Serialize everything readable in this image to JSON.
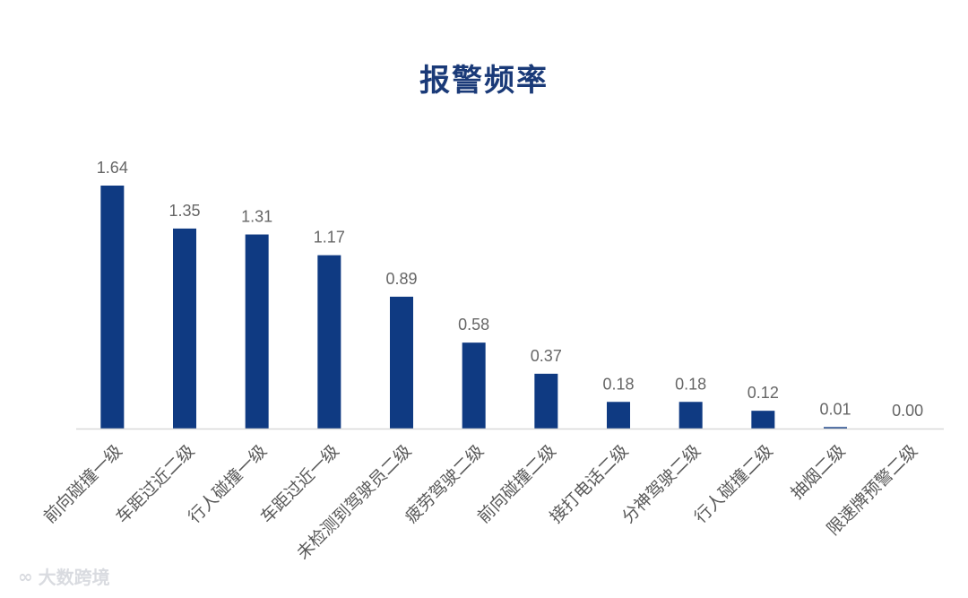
{
  "title": "报警频率",
  "watermark": {
    "logo_icon": "dashu-logo-icon",
    "text": "大数跨境"
  },
  "colors": {
    "bar": "#0f3a82",
    "title": "#1a3a78",
    "value_label": "#666666",
    "category_label": "#595959",
    "axis": "#d9d9d9"
  },
  "chart_data": {
    "type": "bar",
    "title": "报警频率",
    "categories": [
      "前向碰撞一级",
      "车距过近二级",
      "行人碰撞一级",
      "车距过近一级",
      "未检测到驾驶员二级",
      "疲劳驾驶二级",
      "前向碰撞二级",
      "接打电话二级",
      "分神驾驶二级",
      "行人碰撞二级",
      "抽烟二级",
      "限速牌预警二级"
    ],
    "values": [
      1.64,
      1.35,
      1.31,
      1.17,
      0.89,
      0.58,
      0.37,
      0.18,
      0.18,
      0.12,
      0.01,
      0.0
    ],
    "value_labels": [
      "1.64",
      "1.35",
      "1.31",
      "1.17",
      "0.89",
      "0.58",
      "0.37",
      "0.18",
      "0.18",
      "0.12",
      "0.01",
      "0.00"
    ],
    "xlabel": "",
    "ylabel": "",
    "ylim": [
      0,
      1.64
    ],
    "grid": false,
    "legend": "none"
  }
}
